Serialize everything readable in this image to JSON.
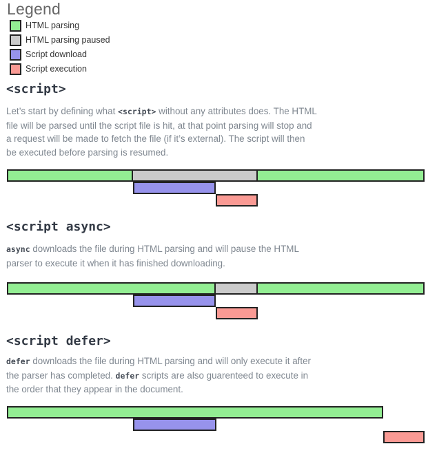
{
  "colors": {
    "parsing": "#93EE93",
    "paused": "#CBCBCB",
    "download": "#9793EC",
    "execution": "#FA9A94",
    "bar_border": "#222222"
  },
  "legend": {
    "title": "Legend",
    "items": [
      {
        "key": "parsing",
        "label": "HTML parsing"
      },
      {
        "key": "paused",
        "label": "HTML parsing paused"
      },
      {
        "key": "download",
        "label": "Script download"
      },
      {
        "key": "execution",
        "label": "Script execution"
      }
    ]
  },
  "sections": [
    {
      "id": "script",
      "heading": "<script>",
      "paragraph": [
        {
          "t": "Let’s start by defining what ",
          "code": false
        },
        {
          "t": "<script>",
          "code": true
        },
        {
          "t": " without any attributes does. The HTML file will be parsed until the script file is hit, at that point parsing will stop and a request will be made to fetch the file (if it’s external). The script will then be executed before parsing is resumed.",
          "code": false
        }
      ],
      "diagram": {
        "rows": [
          "html-parsing-timeline",
          "script-download-timeline",
          "script-execution-timeline"
        ],
        "bars": [
          {
            "type": "parsing",
            "row": 0,
            "start": 10,
            "end": 193
          },
          {
            "type": "paused",
            "row": 0,
            "start": 193,
            "end": 374
          },
          {
            "type": "parsing",
            "row": 0,
            "start": 374,
            "end": 616
          },
          {
            "type": "download",
            "row": 1,
            "start": 193,
            "end": 313
          },
          {
            "type": "execution",
            "row": 2,
            "start": 313,
            "end": 374
          }
        ]
      }
    },
    {
      "id": "script-async",
      "heading": "<script async>",
      "paragraph": [
        {
          "t": "async",
          "code": true
        },
        {
          "t": " downloads the file during HTML parsing and will pause the HTML parser to execute it when it has finished downloading.",
          "code": false
        }
      ],
      "diagram": {
        "rows": [
          "html-parsing-timeline",
          "script-download-timeline",
          "script-execution-timeline"
        ],
        "bars": [
          {
            "type": "parsing",
            "row": 0,
            "start": 10,
            "end": 313
          },
          {
            "type": "paused",
            "row": 0,
            "start": 313,
            "end": 374
          },
          {
            "type": "parsing",
            "row": 0,
            "start": 374,
            "end": 616
          },
          {
            "type": "download",
            "row": 1,
            "start": 193,
            "end": 313
          },
          {
            "type": "execution",
            "row": 2,
            "start": 313,
            "end": 374
          }
        ]
      }
    },
    {
      "id": "script-defer",
      "heading": "<script defer>",
      "paragraph": [
        {
          "t": "defer",
          "code": true
        },
        {
          "t": " downloads the file during HTML parsing and will only execute it after the parser has completed. ",
          "code": false
        },
        {
          "t": "defer",
          "code": true
        },
        {
          "t": " scripts are also guarenteed to execute in the order that they appear in the document.",
          "code": false
        }
      ],
      "diagram": {
        "rows": [
          "html-parsing-timeline",
          "script-download-timeline",
          "script-execution-timeline"
        ],
        "bars": [
          {
            "type": "parsing",
            "row": 0,
            "start": 10,
            "end": 556
          },
          {
            "type": "download",
            "row": 1,
            "start": 193,
            "end": 314
          },
          {
            "type": "execution",
            "row": 2,
            "start": 556,
            "end": 616
          }
        ]
      }
    }
  ]
}
